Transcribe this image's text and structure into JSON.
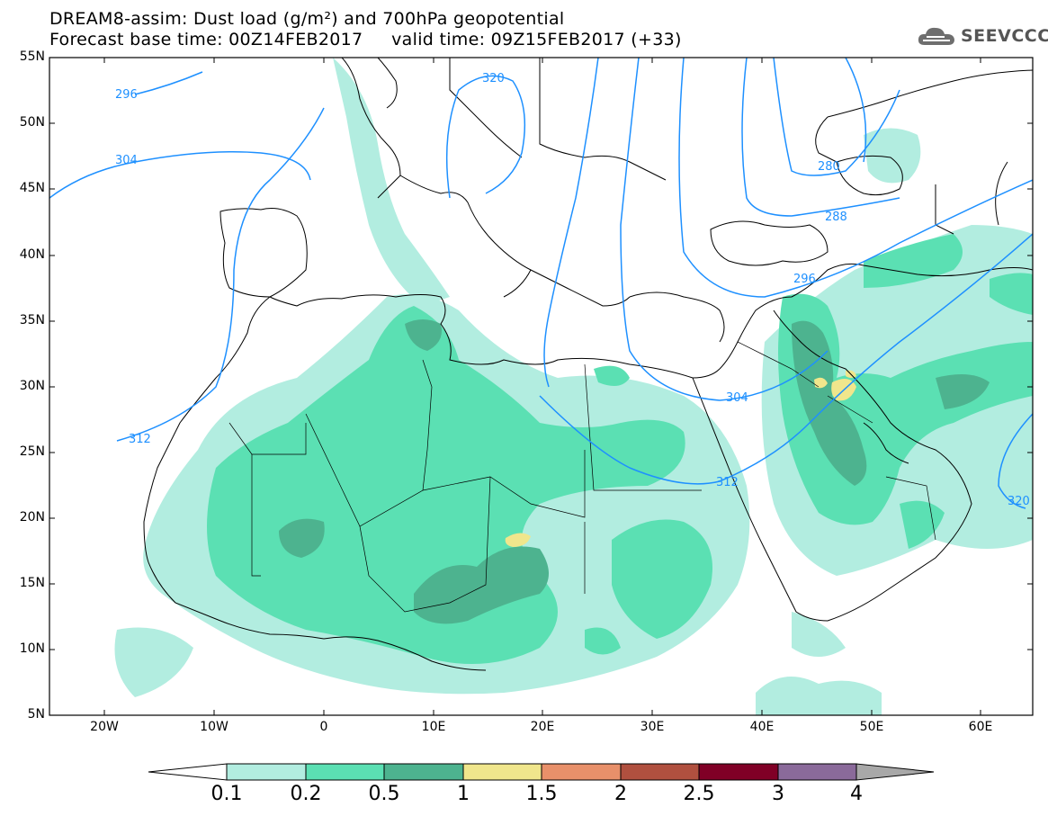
{
  "title": {
    "line1": "DREAM8-assim: Dust load (g/m²) and 700hPa geopotential",
    "line2": "Forecast base time: 00Z14FEB2017     valid time: 09Z15FEB2017 (+33)"
  },
  "logo": {
    "text": "SEEVCCC",
    "icon": "cloud-icon"
  },
  "map": {
    "lat_labels": [
      "55N",
      "50N",
      "45N",
      "40N",
      "35N",
      "30N",
      "25N",
      "20N",
      "15N",
      "10N",
      "5N"
    ],
    "lon_labels": [
      "20W",
      "10W",
      "0",
      "10E",
      "20E",
      "30E",
      "40E",
      "50E",
      "60E"
    ],
    "contours": [
      "296",
      "304",
      "312",
      "320",
      "304",
      "312",
      "320",
      "280",
      "288",
      "296"
    ],
    "colors": {
      "land_outline": "#000000",
      "contour": "#1e90ff"
    }
  },
  "colorbar": {
    "labels": [
      "0.1",
      "0.2",
      "0.5",
      "1",
      "1.5",
      "2",
      "2.5",
      "3",
      "4"
    ],
    "colors": [
      "#ffffff",
      "#b2ede0",
      "#5be0b3",
      "#4db38f",
      "#f0e68c",
      "#e8906a",
      "#b0503f",
      "#800026",
      "#8a6a9a",
      "#a8a8a8"
    ]
  }
}
